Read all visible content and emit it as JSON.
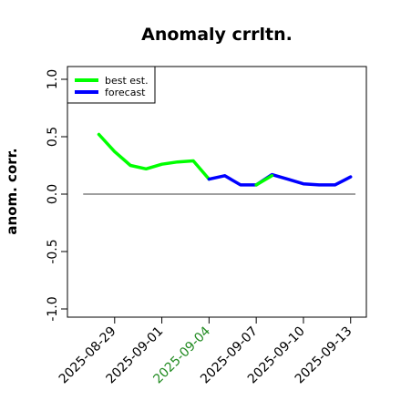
{
  "chart_data": {
    "type": "line",
    "title": "Anomaly crrltn.",
    "ylabel": "anom. corr.",
    "xlabel": "",
    "ylim": [
      -1.0,
      1.0
    ],
    "yticks": [
      -1.0,
      -0.5,
      0.0,
      0.5,
      1.0
    ],
    "ytick_labels": [
      "-1.0",
      "-0.5",
      "0.0",
      "0.5",
      "1.0"
    ],
    "xticks": [
      {
        "label": "2025-08-29",
        "date": "2025-08-29",
        "color": "#000000"
      },
      {
        "label": "2025-09-01",
        "date": "2025-09-01",
        "color": "#000000"
      },
      {
        "label": "2025-09-04",
        "date": "2025-09-04",
        "color": "#228B22"
      },
      {
        "label": "2025-09-07",
        "date": "2025-09-07",
        "color": "#000000"
      },
      {
        "label": "2025-09-10",
        "date": "2025-09-10",
        "color": "#000000"
      },
      {
        "label": "2025-09-13",
        "date": "2025-09-13",
        "color": "#000000"
      }
    ],
    "xlim": [
      "2025-08-26",
      "2025-09-14"
    ],
    "reference_line": {
      "y": 0.0,
      "from": "2025-08-27",
      "to": "2025-09-14",
      "color": "#666666"
    },
    "legend": {
      "placement": "top-left",
      "entries": [
        {
          "name": "best est.",
          "color": "#00ff00"
        },
        {
          "name": "forecast",
          "color": "#0000ff"
        }
      ]
    },
    "series": [
      {
        "name": "best est.",
        "color": "#00ff00",
        "x": [
          "2025-08-28",
          "2025-08-29",
          "2025-08-30",
          "2025-08-31",
          "2025-09-01",
          "2025-09-02",
          "2025-09-03",
          "2025-09-04"
        ],
        "values": [
          0.52,
          0.37,
          0.25,
          0.22,
          0.26,
          0.28,
          0.29,
          0.13
        ]
      },
      {
        "name": "forecast",
        "color": "#0000ff",
        "x": [
          "2025-09-04",
          "2025-09-05",
          "2025-09-06",
          "2025-09-07",
          "2025-09-08",
          "2025-09-09",
          "2025-09-10",
          "2025-09-11",
          "2025-09-12",
          "2025-09-13"
        ],
        "values": [
          0.13,
          0.16,
          0.08,
          0.08,
          0.17,
          0.13,
          0.09,
          0.08,
          0.08,
          0.15
        ]
      },
      {
        "name": "best est. overlay",
        "color": "#00ff00",
        "x": [
          "2025-09-07",
          "2025-09-08"
        ],
        "values": [
          0.08,
          0.16
        ]
      }
    ]
  }
}
